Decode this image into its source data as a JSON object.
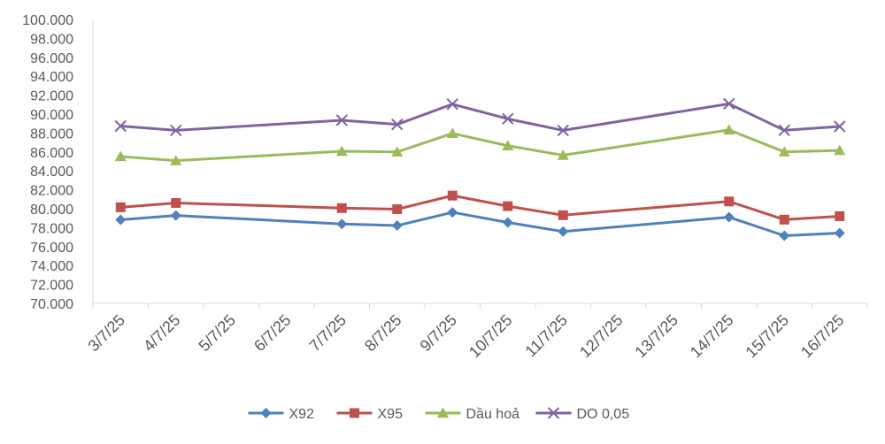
{
  "chart_data": {
    "type": "line",
    "title": "",
    "xlabel": "",
    "ylabel": "",
    "ylim": [
      70000,
      100000
    ],
    "ytick_step": 2000,
    "ytick_labels": [
      "70.000",
      "72.000",
      "74.000",
      "76.000",
      "78.000",
      "80.000",
      "82.000",
      "84.000",
      "86.000",
      "88.000",
      "90.000",
      "92.000",
      "94.000",
      "96.000",
      "98.000",
      "100.000"
    ],
    "categories": [
      "3/7/25",
      "4/7/25",
      "5/7/25",
      "6/7/25",
      "7/7/25",
      "8/7/25",
      "9/7/25",
      "10/7/25",
      "11/7/25",
      "12/7/25",
      "13/7/25",
      "14/7/25",
      "15/7/25",
      "16/7/25"
    ],
    "grid": false,
    "legend_position": "bottom",
    "series": [
      {
        "name": "X92",
        "color": "#4f81bd",
        "marker": "diamond",
        "values": [
          78830,
          79290,
          null,
          null,
          78390,
          78220,
          79620,
          78550,
          77590,
          null,
          null,
          79110,
          77150,
          77430
        ]
      },
      {
        "name": "X95",
        "color": "#c0504d",
        "marker": "square",
        "values": [
          80150,
          80610,
          null,
          null,
          80070,
          79950,
          81390,
          80270,
          79320,
          null,
          null,
          80770,
          78850,
          79210
        ]
      },
      {
        "name": "Dầu hoả",
        "color": "#9bbb59",
        "marker": "triangle",
        "values": [
          85520,
          85080,
          null,
          null,
          86070,
          86000,
          87960,
          86660,
          85650,
          null,
          null,
          88330,
          86010,
          86160
        ]
      },
      {
        "name": "DO 0,05",
        "color": "#8064a2",
        "marker": "x",
        "values": [
          88740,
          88280,
          null,
          null,
          89350,
          88910,
          91050,
          89500,
          88280,
          null,
          null,
          91090,
          88290,
          88690
        ]
      }
    ]
  }
}
